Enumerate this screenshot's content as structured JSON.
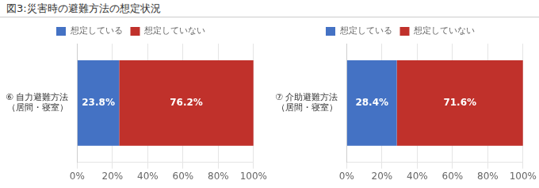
{
  "chart_data": [
    {
      "type": "bar",
      "title": "図3:災害時の避難方法の想定状況",
      "orientation": "horizontal",
      "stacked": true,
      "categories": [
        "⑥ 自力避難方法\n（居間・寝室）"
      ],
      "series": [
        {
          "name": "想定している",
          "color": "#4472C4",
          "values": [
            23.8
          ],
          "value_labels": [
            "23.8%"
          ]
        },
        {
          "name": "想定していない",
          "color": "#C0312B",
          "values": [
            76.2
          ],
          "value_labels": [
            "76.2%"
          ]
        }
      ],
      "xlim": [
        0,
        100
      ],
      "xticks": [
        {
          "value": 0,
          "label": "0%"
        },
        {
          "value": 20,
          "label": "20%"
        },
        {
          "value": 40,
          "label": "40%"
        },
        {
          "value": 60,
          "label": "60%"
        },
        {
          "value": 80,
          "label": "80%"
        },
        {
          "value": 100,
          "label": "100%"
        }
      ],
      "grid": true,
      "legend": "top",
      "data_labels": true
    },
    {
      "type": "bar",
      "orientation": "horizontal",
      "stacked": true,
      "categories": [
        "⑦ 介助避難方法\n（居間・寝室）"
      ],
      "series": [
        {
          "name": "想定している",
          "color": "#4472C4",
          "values": [
            28.4
          ],
          "value_labels": [
            "28.4%"
          ]
        },
        {
          "name": "想定していない",
          "color": "#C0312B",
          "values": [
            71.6
          ],
          "value_labels": [
            "71.6%"
          ]
        }
      ],
      "xlim": [
        0,
        100
      ],
      "xticks": [
        {
          "value": 0,
          "label": "0%"
        },
        {
          "value": 20,
          "label": "20%"
        },
        {
          "value": 40,
          "label": "40%"
        },
        {
          "value": 60,
          "label": "60%"
        },
        {
          "value": 80,
          "label": "80%"
        },
        {
          "value": 100,
          "label": "100%"
        }
      ],
      "grid": true,
      "legend": "top",
      "data_labels": true
    }
  ]
}
